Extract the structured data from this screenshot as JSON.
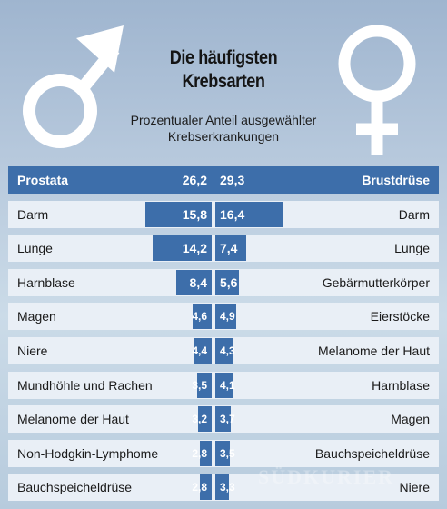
{
  "header": {
    "title_line1": "Die häufigsten",
    "title_line2": "Krebsarten",
    "subtitle_line1": "Prozentualer Anteil ausgewählter",
    "subtitle_line2": "Krebserkrankungen"
  },
  "watermark": "SÜDKURIER",
  "colors": {
    "bar": "#3d6eaa",
    "row_background": "#e9eff6",
    "symbol": "#ffffff"
  },
  "icons": {
    "left": "male-symbol-icon",
    "right": "female-symbol-icon"
  },
  "chart_data": {
    "type": "bar",
    "orientation": "horizontal-butterfly",
    "unit": "%",
    "xlim": [
      0,
      30
    ],
    "men": {
      "categories": [
        "Prostata",
        "Darm",
        "Lunge",
        "Harnblase",
        "Magen",
        "Niere",
        "Mundhöhle und Rachen",
        "Melanome der Haut",
        "Non-Hodgkin-Lymphome",
        "Bauchspeicheldrüse"
      ],
      "values": [
        26.2,
        15.8,
        14.2,
        8.4,
        4.6,
        4.4,
        3.5,
        3.2,
        2.8,
        2.8
      ],
      "value_labels": [
        "26,2",
        "15,8",
        "14,2",
        "8,4",
        "4,6",
        "4,4",
        "3,5",
        "3,2",
        "2,8",
        "2,8"
      ]
    },
    "women": {
      "categories": [
        "Brustdrüse",
        "Darm",
        "Lunge",
        "Gebärmutterkörper",
        "Eierstöcke",
        "Melanome der Haut",
        "Harnblase",
        "Magen",
        "Bauchspeicheldrüse",
        "Niere"
      ],
      "values": [
        29.3,
        16.4,
        7.4,
        5.6,
        4.9,
        4.3,
        4.1,
        3.7,
        3.5,
        3.3
      ],
      "value_labels": [
        "29,3",
        "16,4",
        "7,4",
        "5,6",
        "4,9",
        "4,3",
        "4,1",
        "3,7",
        "3,5",
        "3,3"
      ]
    }
  }
}
